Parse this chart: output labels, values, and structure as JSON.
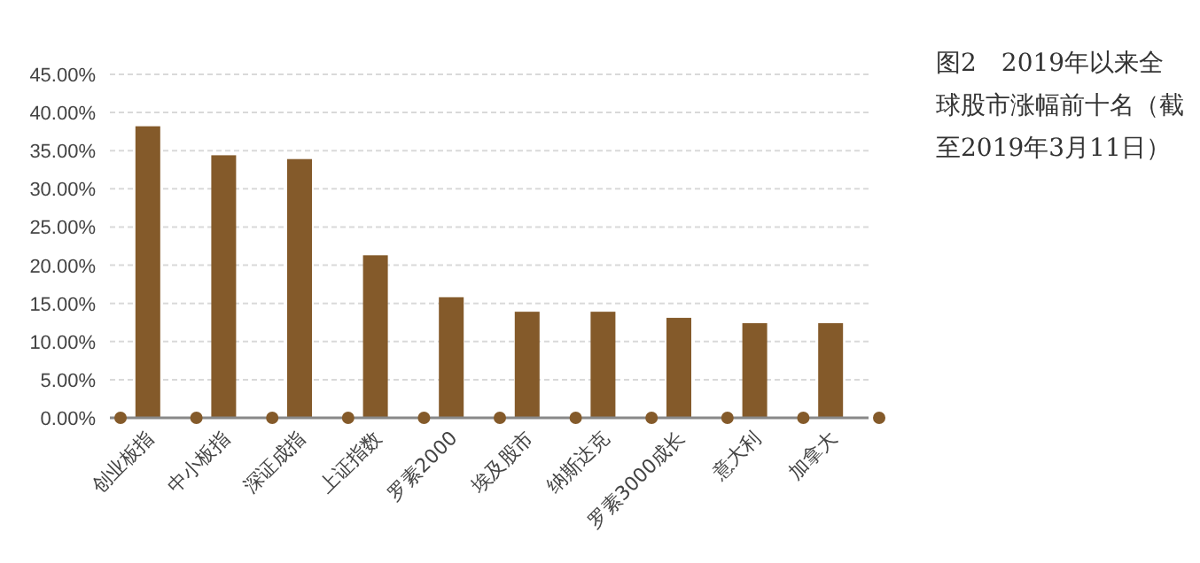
{
  "chart_data": {
    "type": "bar",
    "title": "图2　2019年以来全球股市涨幅前十名（截至2019年3月11日）",
    "categories": [
      "创业板指",
      "中小板指",
      "深证成指",
      "上证指数",
      "罗素2000",
      "埃及股市",
      "纳斯达克",
      "罗素3000成长",
      "意大利",
      "加拿大"
    ],
    "values": [
      38.2,
      34.4,
      33.9,
      21.3,
      15.8,
      13.9,
      13.9,
      13.1,
      12.4,
      12.4
    ],
    "color": "#845a2a",
    "ylim": [
      0,
      45
    ],
    "yticks": [
      {
        "value": 0,
        "label": "0.00%"
      },
      {
        "value": 5,
        "label": "5.00%"
      },
      {
        "value": 10,
        "label": "10.00%"
      },
      {
        "value": 15,
        "label": "15.00%"
      },
      {
        "value": 20,
        "label": "20.00%"
      },
      {
        "value": 25,
        "label": "25.00%"
      },
      {
        "value": 30,
        "label": "30.00%"
      },
      {
        "value": 35,
        "label": "35.00%"
      },
      {
        "value": 40,
        "label": "40.00%"
      },
      {
        "value": 45,
        "label": "45.00%"
      }
    ],
    "grid": "y"
  }
}
